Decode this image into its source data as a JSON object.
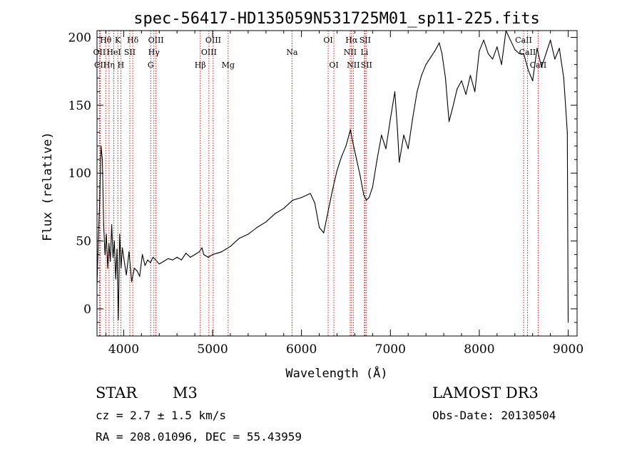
{
  "chart_data": {
    "type": "line",
    "title": "spec-56417-HD135059N531725M01_sp11-225.fits",
    "xlabel": "Wavelength (Å)",
    "ylabel": "Flux (relative)",
    "xlim": [
      3700,
      9100
    ],
    "ylim": [
      -20,
      205
    ],
    "xticks": [
      4000,
      5000,
      6000,
      7000,
      8000,
      9000
    ],
    "yticks": [
      0,
      50,
      100,
      150,
      200
    ],
    "series": [
      {
        "name": "spectrum",
        "x": [
          3700,
          3715,
          3730,
          3745,
          3760,
          3775,
          3790,
          3805,
          3820,
          3835,
          3850,
          3865,
          3880,
          3895,
          3910,
          3925,
          3940,
          3955,
          3970,
          3985,
          4000,
          4030,
          4060,
          4090,
          4120,
          4150,
          4180,
          4210,
          4240,
          4270,
          4300,
          4330,
          4360,
          4400,
          4450,
          4500,
          4550,
          4600,
          4650,
          4700,
          4750,
          4800,
          4850,
          4880,
          4900,
          4950,
          5000,
          5050,
          5100,
          5150,
          5200,
          5300,
          5400,
          5500,
          5600,
          5700,
          5800,
          5900,
          6000,
          6100,
          6150,
          6200,
          6250,
          6300,
          6350,
          6400,
          6450,
          6500,
          6550,
          6580,
          6620,
          6660,
          6700,
          6730,
          6760,
          6800,
          6850,
          6900,
          6950,
          7000,
          7050,
          7080,
          7100,
          7150,
          7200,
          7250,
          7300,
          7350,
          7400,
          7450,
          7500,
          7550,
          7580,
          7620,
          7660,
          7700,
          7750,
          7800,
          7850,
          7900,
          7950,
          8000,
          8050,
          8100,
          8150,
          8200,
          8250,
          8300,
          8350,
          8400,
          8450,
          8500,
          8550,
          8600,
          8650,
          8700,
          8750,
          8800,
          8850,
          8900,
          8950,
          8990,
          9000
        ],
        "values": [
          18,
          52,
          78,
          120,
          110,
          62,
          40,
          55,
          30,
          48,
          35,
          62,
          38,
          50,
          22,
          44,
          -8,
          55,
          30,
          45,
          38,
          25,
          42,
          20,
          30,
          28,
          24,
          40,
          32,
          36,
          34,
          38,
          36,
          33,
          35,
          37,
          36,
          38,
          36,
          41,
          38,
          40,
          42,
          45,
          40,
          38,
          40,
          41,
          42,
          44,
          46,
          52,
          55,
          60,
          64,
          70,
          74,
          80,
          82,
          85,
          78,
          60,
          56,
          72,
          88,
          102,
          112,
          120,
          132,
          122,
          110,
          98,
          84,
          80,
          82,
          90,
          110,
          128,
          118,
          140,
          160,
          132,
          108,
          128,
          118,
          140,
          160,
          172,
          180,
          185,
          190,
          196,
          188,
          170,
          138,
          148,
          162,
          168,
          158,
          172,
          160,
          190,
          198,
          188,
          184,
          193,
          180,
          205,
          198,
          191,
          188,
          188,
          176,
          168,
          192,
          178,
          188,
          198,
          184,
          192,
          170,
          130,
          -10
        ]
      }
    ],
    "line_markers": [
      {
        "label": "Hθ",
        "wave": 3798,
        "row": 1
      },
      {
        "label": "OII",
        "wave": 3727,
        "row": 2
      },
      {
        "label": "CII",
        "wave": 3737,
        "row": 3
      },
      {
        "label": "K",
        "wave": 3934,
        "row": 1
      },
      {
        "label": "HeI",
        "wave": 3889,
        "row": 2
      },
      {
        "label": "Hη",
        "wave": 3835,
        "row": 3
      },
      {
        "label": "SII",
        "wave": 4069,
        "row": 2
      },
      {
        "label": "H",
        "wave": 3968,
        "row": 3
      },
      {
        "label": "Hδ",
        "wave": 4102,
        "row": 1
      },
      {
        "label": "OIII",
        "wave": 4363,
        "row": 1
      },
      {
        "label": "Hγ",
        "wave": 4340,
        "row": 2
      },
      {
        "label": "G",
        "wave": 4304,
        "row": 3
      },
      {
        "label": "Hβ",
        "wave": 4861,
        "row": 3
      },
      {
        "label": "OIII",
        "wave": 5007,
        "row": 1
      },
      {
        "label": "OIII",
        "wave": 4959,
        "row": 2
      },
      {
        "label": "Mg",
        "wave": 5175,
        "row": 3
      },
      {
        "label": "Na",
        "wave": 5893,
        "row": 2
      },
      {
        "label": "OI",
        "wave": 6300,
        "row": 1
      },
      {
        "label": "OI",
        "wave": 6364,
        "row": 3
      },
      {
        "label": "Hα",
        "wave": 6563,
        "row": 1
      },
      {
        "label": "NII",
        "wave": 6548,
        "row": 2
      },
      {
        "label": "NII",
        "wave": 6583,
        "row": 3
      },
      {
        "label": "SII",
        "wave": 6716,
        "row": 1
      },
      {
        "label": "Li",
        "wave": 6708,
        "row": 2
      },
      {
        "label": "SII",
        "wave": 6731,
        "row": 3
      },
      {
        "label": "CaII",
        "wave": 8498,
        "row": 1
      },
      {
        "label": "CaII",
        "wave": 8542,
        "row": 2
      },
      {
        "label": "CaII",
        "wave": 8662,
        "row": 3
      }
    ]
  },
  "info": {
    "object_class": "STAR",
    "subclass": "M3",
    "survey": "LAMOST DR3",
    "cz": "cz = 2.7 ± 1.5 km/s",
    "obs_date": "Obs-Date: 20130504",
    "coords": "RA = 208.01096, DEC =  55.43959"
  },
  "colors": {
    "line_marker": "#cc0000",
    "spectrum": "#000000"
  }
}
